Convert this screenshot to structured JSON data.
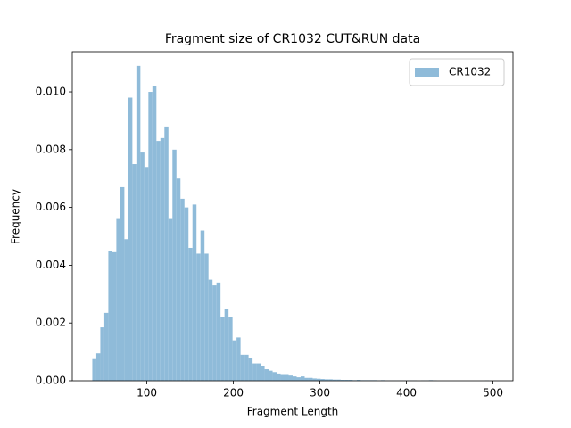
{
  "chart_data": {
    "type": "histogram",
    "title": "Fragment size of CR1032 CUT&RUN data",
    "xlabel": "Fragment Length",
    "ylabel": "Frequency",
    "bins": [
      37,
      41.63,
      46.26,
      50.89,
      55.52,
      60.15,
      64.78,
      69.41,
      74.04,
      78.67,
      83.3,
      87.93,
      92.56,
      97.19,
      101.82,
      106.45,
      111.08,
      115.71,
      120.34,
      124.97,
      129.6,
      134.23,
      138.86,
      143.49,
      148.12,
      152.75,
      157.38,
      162.01,
      166.64,
      171.27,
      175.9,
      180.53,
      185.16,
      189.79,
      194.42,
      199.05,
      203.68,
      208.31,
      212.94,
      217.57,
      222.2,
      226.83,
      231.46,
      236.09,
      240.72,
      245.35,
      249.98,
      254.61,
      259.24,
      263.87,
      268.5,
      273.13,
      277.76,
      282.39,
      287.02,
      291.65,
      296.28,
      300.91,
      305.54,
      310.17,
      314.8,
      319.43,
      324.06,
      328.69,
      333.32,
      337.95,
      342.58,
      347.21,
      351.84,
      356.47,
      361.1,
      365.73,
      370.36,
      374.99,
      379.62,
      384.25,
      388.88,
      393.51,
      398.14,
      402.77,
      407.4,
      412.03,
      416.66,
      421.29,
      425.92,
      430.55,
      435.18,
      439.81,
      444.44,
      449.07,
      453.7,
      458.33,
      462.96,
      467.59,
      472.22,
      476.85,
      481.48,
      486.11,
      490.74,
      495.37,
      500
    ],
    "series": [
      {
        "name": "CR1032",
        "color": "#8fbbd9",
        "values": [
          0.00075,
          0.00095,
          0.00185,
          0.00235,
          0.0045,
          0.00445,
          0.0056,
          0.0067,
          0.0049,
          0.0098,
          0.0075,
          0.0109,
          0.0079,
          0.0074,
          0.01,
          0.0102,
          0.0083,
          0.0084,
          0.0088,
          0.0056,
          0.008,
          0.007,
          0.0063,
          0.006,
          0.0046,
          0.0061,
          0.0044,
          0.0052,
          0.0044,
          0.0035,
          0.0033,
          0.0034,
          0.0022,
          0.0025,
          0.0022,
          0.0014,
          0.0015,
          0.0009,
          0.0009,
          0.0008,
          0.0006,
          0.0006,
          0.0005,
          0.0004,
          0.00035,
          0.0003,
          0.00025,
          0.0002,
          0.0002,
          0.00018,
          0.00015,
          0.00012,
          0.00015,
          0.0001,
          0.0001,
          8e-05,
          7e-05,
          6e-05,
          5e-05,
          5e-05,
          4e-05,
          4e-05,
          3e-05,
          3e-05,
          3e-05,
          2e-05,
          3e-05,
          2e-05,
          2e-05,
          2e-05,
          2e-05,
          1e-05,
          2e-05,
          1e-05,
          1e-05,
          1e-05,
          1e-05,
          1e-05,
          1e-05,
          1e-05,
          1e-05,
          0,
          1e-05,
          1e-05,
          2e-05,
          1e-05,
          0,
          0,
          0,
          0,
          0,
          0,
          0,
          0,
          0,
          0,
          0,
          0,
          1e-05,
          0
        ]
      }
    ],
    "xlim": [
      13.85,
      523.15
    ],
    "ylim": [
      0,
      0.01139
    ],
    "xticks": [
      100,
      200,
      300,
      400,
      500
    ],
    "yticks": [
      {
        "value": 0,
        "label": "0.000"
      },
      {
        "value": 0.002,
        "label": "0.002"
      },
      {
        "value": 0.004,
        "label": "0.004"
      },
      {
        "value": 0.006,
        "label": "0.006"
      },
      {
        "value": 0.008,
        "label": "0.008"
      },
      {
        "value": 0.01,
        "label": "0.010"
      }
    ],
    "legend": "upper right"
  }
}
